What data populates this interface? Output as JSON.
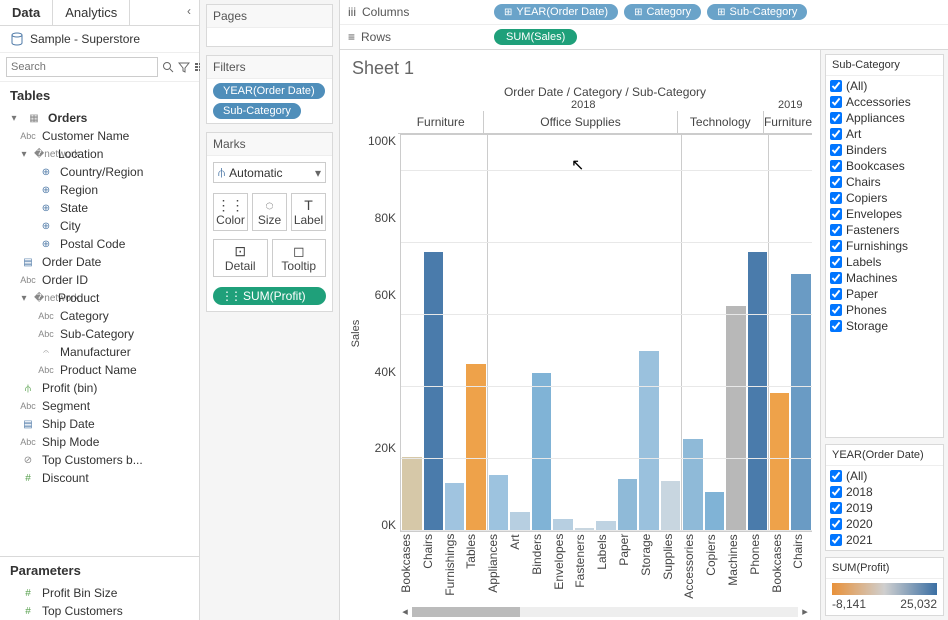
{
  "tabs": {
    "data": "Data",
    "analytics": "Analytics"
  },
  "datasource": "Sample - Superstore",
  "search_placeholder": "Search",
  "tables_header": "Tables",
  "tree": {
    "orders": "Orders",
    "customer_name": "Customer Name",
    "location": "Location",
    "country_region": "Country/Region",
    "region": "Region",
    "state": "State",
    "city": "City",
    "postal_code": "Postal Code",
    "order_date": "Order Date",
    "order_id": "Order ID",
    "product": "Product",
    "category": "Category",
    "sub_category": "Sub-Category",
    "manufacturer": "Manufacturer",
    "product_name": "Product Name",
    "profit_bin": "Profit (bin)",
    "segment": "Segment",
    "ship_date": "Ship Date",
    "ship_mode": "Ship Mode",
    "top_customers_b": "Top Customers b...",
    "discount": "Discount"
  },
  "parameters_header": "Parameters",
  "params": {
    "profit_bin_size": "Profit Bin Size",
    "top_customers": "Top Customers"
  },
  "cards": {
    "pages": "Pages",
    "filters": "Filters",
    "marks": "Marks",
    "filter_pills": [
      "YEAR(Order Date)",
      "Sub-Category"
    ],
    "marks_type": "Automatic",
    "marks_cells": {
      "color": "Color",
      "size": "Size",
      "label": "Label",
      "detail": "Detail",
      "tooltip": "Tooltip"
    },
    "marks_pill": "SUM(Profit)"
  },
  "shelves": {
    "columns_label": "Columns",
    "rows_label": "Rows",
    "columns": [
      "YEAR(Order Date)",
      "Category",
      "Sub-Category"
    ],
    "rows": [
      "SUM(Sales)"
    ]
  },
  "sheet_title": "Sheet 1",
  "viz": {
    "breadcrumb": "Order Date / Category / Sub-Category",
    "year1": "2018",
    "year2": "2019",
    "groups": [
      {
        "name": "Furniture",
        "width": 4
      },
      {
        "name": "Office Supplies",
        "width": 9
      },
      {
        "name": "Technology",
        "width": 4
      },
      {
        "name": "Furniture",
        "width": 2
      }
    ],
    "y_label": "Sales",
    "y_ticks": [
      "100K",
      "80K",
      "60K",
      "40K",
      "20K",
      "0K"
    ],
    "y_max": 110,
    "bars": [
      {
        "label": "Bookcases",
        "value": 20.5,
        "color": "#d6c8a8"
      },
      {
        "label": "Chairs",
        "value": 77.5,
        "color": "#4a7bab"
      },
      {
        "label": "Furnishings",
        "value": 13.5,
        "color": "#a0c4e0"
      },
      {
        "label": "Tables",
        "value": 46.5,
        "color": "#eea24a"
      },
      {
        "sep": true
      },
      {
        "label": "Appliances",
        "value": 15.5,
        "color": "#9dc3df"
      },
      {
        "label": "Art",
        "value": 5.5,
        "color": "#b7cfe1"
      },
      {
        "label": "Binders",
        "value": 44.0,
        "color": "#80b3d6"
      },
      {
        "label": "Envelopes",
        "value": 3.5,
        "color": "#b7cfe1"
      },
      {
        "label": "Fasteners",
        "value": 0.8,
        "color": "#c8d6e0"
      },
      {
        "label": "Labels",
        "value": 2.8,
        "color": "#bfd3e2"
      },
      {
        "label": "Paper",
        "value": 14.5,
        "color": "#8fbad8"
      },
      {
        "label": "Storage",
        "value": 50.0,
        "color": "#9ac1dd"
      },
      {
        "label": "Supplies",
        "value": 14.0,
        "color": "#c8d6e0"
      },
      {
        "sep": true
      },
      {
        "label": "Accessories",
        "value": 25.5,
        "color": "#8fbad8"
      },
      {
        "label": "Copiers",
        "value": 11.0,
        "color": "#80b3d6"
      },
      {
        "label": "Machines",
        "value": 62.5,
        "color": "#b8b8b8"
      },
      {
        "label": "Phones",
        "value": 77.5,
        "color": "#4a7bab"
      },
      {
        "sep": true
      },
      {
        "label": "Bookcases",
        "value": 38.5,
        "color": "#eea24a"
      },
      {
        "label": "Chairs",
        "value": 71.5,
        "color": "#6a9bc4"
      }
    ]
  },
  "right": {
    "subcat_title": "Sub-Category",
    "subcat_items": [
      "(All)",
      "Accessories",
      "Appliances",
      "Art",
      "Binders",
      "Bookcases",
      "Chairs",
      "Copiers",
      "Envelopes",
      "Fasteners",
      "Furnishings",
      "Labels",
      "Machines",
      "Paper",
      "Phones",
      "Storage"
    ],
    "year_title": "YEAR(Order Date)",
    "year_items": [
      "(All)",
      "2018",
      "2019",
      "2020",
      "2021"
    ],
    "legend_title": "SUM(Profit)",
    "legend_min": "-8,141",
    "legend_max": "25,032"
  }
}
